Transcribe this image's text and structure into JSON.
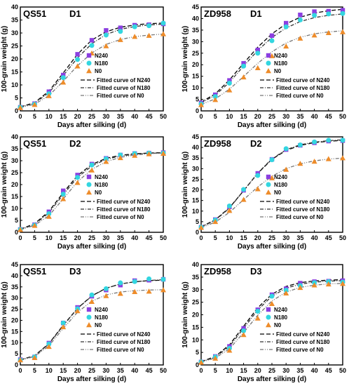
{
  "chart_data": [
    {
      "type": "scatter",
      "variety": "QS51",
      "site": "D1",
      "xlabel": "Days after silking (d)",
      "ylabel": "100-grain weight (g)",
      "xlim": [
        0,
        50
      ],
      "ylim": [
        0,
        40
      ],
      "xticks": [
        0,
        5,
        10,
        15,
        20,
        25,
        30,
        35,
        40,
        45,
        50
      ],
      "yticks": [
        0,
        5,
        10,
        15,
        20,
        25,
        30,
        35,
        40
      ],
      "legend_position": "bottom-right",
      "grid": false,
      "x": [
        0,
        5,
        10,
        15,
        20,
        25,
        30,
        35,
        40,
        45,
        50
      ],
      "series": [
        {
          "name": "N240",
          "marker": "square",
          "color": "#8b3fe0",
          "values": [
            1.4,
            2.8,
            7.4,
            13.8,
            21.8,
            27.2,
            31.0,
            32.0,
            33.0,
            33.2,
            33.5
          ]
        },
        {
          "name": "N180",
          "marker": "circle",
          "color": "#33d6e0",
          "values": [
            1.4,
            2.6,
            6.6,
            12.8,
            19.8,
            25.2,
            29.2,
            30.6,
            32.4,
            32.8,
            33.8
          ]
        },
        {
          "name": "N0",
          "marker": "triangle",
          "color": "#ee8c2a",
          "values": [
            1.2,
            2.4,
            5.8,
            11.0,
            17.2,
            22.2,
            25.0,
            27.4,
            28.6,
            29.0,
            29.6
          ]
        }
      ],
      "fitted_curves": [
        {
          "name": "Fitted curve of N240",
          "color": "#000000",
          "dash": "6,3",
          "values": [
            1.5,
            3.2,
            7.6,
            14.6,
            21.8,
            27.3,
            30.5,
            32.2,
            33.1,
            33.6,
            33.8
          ]
        },
        {
          "name": "Fitted curve of N180",
          "color": "#333333",
          "dash": "5,2,1,2",
          "values": [
            1.4,
            3.0,
            7.0,
            13.6,
            20.4,
            25.9,
            29.4,
            31.4,
            32.5,
            33.1,
            33.4
          ]
        },
        {
          "name": "Fitted curve of N0",
          "color": "#777777",
          "dash": "5,2,1,2,1,2",
          "values": [
            1.3,
            2.6,
            5.9,
            11.4,
            17.4,
            22.3,
            25.6,
            27.5,
            28.6,
            29.2,
            29.6
          ]
        }
      ]
    },
    {
      "type": "scatter",
      "variety": "ZD958",
      "site": "D1",
      "xlabel": "Days after silking (d)",
      "ylabel": "100-grain weight (g)",
      "xlim": [
        0,
        50
      ],
      "ylim": [
        0,
        45
      ],
      "xticks": [
        0,
        5,
        10,
        15,
        20,
        25,
        30,
        35,
        40,
        45,
        50
      ],
      "yticks": [
        0,
        5,
        10,
        15,
        20,
        25,
        30,
        35,
        40,
        45
      ],
      "legend_position": "bottom-right",
      "grid": false,
      "x": [
        0,
        5,
        10,
        15,
        20,
        25,
        30,
        35,
        40,
        45,
        50
      ],
      "series": [
        {
          "name": "N240",
          "marker": "square",
          "color": "#8b3fe0",
          "values": [
            3.5,
            7.0,
            13.2,
            20.6,
            26.4,
            32.6,
            38.0,
            41.6,
            43.0,
            43.2,
            43.6
          ]
        },
        {
          "name": "N180",
          "marker": "circle",
          "color": "#33d6e0",
          "values": [
            3.0,
            6.2,
            12.0,
            19.4,
            25.0,
            30.4,
            36.4,
            39.4,
            41.4,
            42.0,
            42.2
          ]
        },
        {
          "name": "N0",
          "marker": "triangle",
          "color": "#ee8c2a",
          "values": [
            2.6,
            4.8,
            9.0,
            14.6,
            18.6,
            23.8,
            28.0,
            31.4,
            32.8,
            33.8,
            34.2
          ]
        }
      ],
      "fitted_curves": [
        {
          "name": "Fitted curve of N240",
          "color": "#000000",
          "dash": "6,3",
          "values": [
            3.8,
            7.4,
            13.4,
            20.6,
            27.6,
            33.4,
            37.7,
            40.6,
            42.4,
            43.4,
            44.0
          ]
        },
        {
          "name": "Fitted curve of N180",
          "color": "#333333",
          "dash": "5,2,1,2",
          "values": [
            3.4,
            6.8,
            12.4,
            19.4,
            26.2,
            31.8,
            35.9,
            38.7,
            40.4,
            41.4,
            42.0
          ]
        },
        {
          "name": "Fitted curve of N0",
          "color": "#777777",
          "dash": "5,2,1,2,1,2",
          "values": [
            2.8,
            5.2,
            9.4,
            14.9,
            20.6,
            25.6,
            29.4,
            31.9,
            33.4,
            34.2,
            34.7
          ]
        }
      ]
    },
    {
      "type": "scatter",
      "variety": "QS51",
      "site": "D2",
      "xlabel": "Days after silking (d)",
      "ylabel": "100-grain weight (g)",
      "xlim": [
        0,
        50
      ],
      "ylim": [
        0,
        40
      ],
      "xticks": [
        0,
        5,
        10,
        15,
        20,
        25,
        30,
        35,
        40,
        45,
        50
      ],
      "yticks": [
        0,
        5,
        10,
        15,
        20,
        25,
        30,
        35,
        40
      ],
      "legend_position": "bottom-right",
      "grid": false,
      "x": [
        0,
        5,
        10,
        15,
        20,
        25,
        30,
        35,
        40,
        45,
        50
      ],
      "series": [
        {
          "name": "N240",
          "marker": "square",
          "color": "#8b3fe0",
          "values": [
            1.2,
            3.2,
            8.6,
            17.4,
            24.0,
            28.6,
            31.0,
            32.4,
            33.0,
            33.2,
            33.4
          ]
        },
        {
          "name": "N180",
          "marker": "circle",
          "color": "#33d6e0",
          "values": [
            1.2,
            3.0,
            7.8,
            16.0,
            23.0,
            28.2,
            30.8,
            32.4,
            33.0,
            33.2,
            33.2
          ]
        },
        {
          "name": "N0",
          "marker": "triangle",
          "color": "#ee8c2a",
          "values": [
            1.1,
            2.8,
            6.6,
            14.0,
            20.8,
            26.0,
            29.6,
            31.2,
            32.2,
            32.8,
            33.0
          ]
        }
      ],
      "fitted_curves": [
        {
          "name": "Fitted curve of N240",
          "color": "#000000",
          "dash": "6,3",
          "values": [
            1.3,
            3.6,
            8.8,
            16.6,
            23.8,
            28.4,
            31.0,
            32.3,
            32.9,
            33.2,
            33.4
          ]
        },
        {
          "name": "Fitted curve of N180",
          "color": "#333333",
          "dash": "5,2,1,2",
          "values": [
            1.2,
            3.3,
            8.2,
            15.8,
            23.0,
            27.8,
            30.6,
            32.0,
            32.7,
            33.1,
            33.3
          ]
        },
        {
          "name": "Fitted curve of N0",
          "color": "#777777",
          "dash": "5,2,1,2,1,2",
          "values": [
            1.1,
            2.9,
            7.0,
            14.0,
            21.2,
            26.4,
            29.6,
            31.4,
            32.4,
            32.9,
            33.2
          ]
        }
      ]
    },
    {
      "type": "scatter",
      "variety": "ZD958",
      "site": "D2",
      "xlabel": "Days after silking (d)",
      "ylabel": "100-grain weight (g)",
      "xlim": [
        0,
        50
      ],
      "ylim": [
        0,
        45
      ],
      "xticks": [
        0,
        5,
        10,
        15,
        20,
        25,
        30,
        35,
        40,
        45,
        50
      ],
      "yticks": [
        0,
        5,
        10,
        15,
        20,
        25,
        30,
        35,
        40,
        45
      ],
      "legend_position": "bottom-right",
      "grid": false,
      "x": [
        0,
        5,
        10,
        15,
        20,
        25,
        30,
        35,
        40,
        45,
        50
      ],
      "series": [
        {
          "name": "N240",
          "marker": "square",
          "color": "#8b3fe0",
          "values": [
            2.4,
            6.0,
            12.0,
            19.8,
            27.8,
            34.4,
            39.0,
            41.0,
            42.2,
            43.0,
            43.2
          ]
        },
        {
          "name": "N180",
          "marker": "circle",
          "color": "#33d6e0",
          "values": [
            2.4,
            5.8,
            12.4,
            20.2,
            26.8,
            34.2,
            39.4,
            41.2,
            42.6,
            43.4,
            43.4
          ]
        },
        {
          "name": "N0",
          "marker": "triangle",
          "color": "#ee8c2a",
          "values": [
            2.2,
            5.0,
            10.2,
            15.4,
            20.4,
            25.6,
            29.6,
            32.4,
            33.4,
            34.6,
            35.0
          ]
        }
      ],
      "fitted_curves": [
        {
          "name": "Fitted curve of N240",
          "color": "#000000",
          "dash": "6,3",
          "values": [
            2.6,
            5.9,
            11.6,
            19.6,
            27.8,
            34.4,
            38.6,
            41.0,
            42.3,
            42.9,
            43.3
          ]
        },
        {
          "name": "Fitted curve of N180",
          "color": "#333333",
          "dash": "5,2,1,2",
          "values": [
            2.5,
            5.7,
            11.4,
            19.6,
            28.0,
            34.6,
            38.9,
            41.3,
            42.5,
            43.2,
            43.6
          ]
        },
        {
          "name": "Fitted curve of N0",
          "color": "#777777",
          "dash": "5,2,1,2,1,2",
          "values": [
            2.2,
            4.8,
            9.4,
            15.4,
            21.4,
            26.4,
            30.0,
            32.3,
            33.7,
            34.5,
            35.0
          ]
        }
      ]
    },
    {
      "type": "scatter",
      "variety": "QS51",
      "site": "D3",
      "xlabel": "Days after silking (d)",
      "ylabel": "100-grain weight (g)",
      "xlim": [
        0,
        50
      ],
      "ylim": [
        0,
        45
      ],
      "xticks": [
        0,
        5,
        10,
        15,
        20,
        25,
        30,
        35,
        40,
        45,
        50
      ],
      "yticks": [
        0,
        5,
        10,
        15,
        20,
        25,
        30,
        35,
        40,
        45
      ],
      "legend_position": "bottom-right",
      "grid": false,
      "x": [
        0,
        5,
        10,
        15,
        20,
        25,
        30,
        35,
        40,
        45,
        50
      ],
      "series": [
        {
          "name": "N240",
          "marker": "square",
          "color": "#8b3fe0",
          "values": [
            2.4,
            3.6,
            9.8,
            18.8,
            25.8,
            30.8,
            33.6,
            35.8,
            37.8,
            38.0,
            38.4
          ]
        },
        {
          "name": "N180",
          "marker": "circle",
          "color": "#33d6e0",
          "values": [
            2.2,
            3.6,
            9.4,
            18.8,
            25.2,
            31.4,
            34.2,
            36.8,
            37.4,
            38.6,
            38.4
          ]
        },
        {
          "name": "N0",
          "marker": "triangle",
          "color": "#ee8c2a",
          "values": [
            2.2,
            3.2,
            8.2,
            17.0,
            24.2,
            28.4,
            31.0,
            32.0,
            32.8,
            33.0,
            33.6
          ]
        }
      ],
      "fitted_curves": [
        {
          "name": "Fitted curve of N240",
          "color": "#000000",
          "dash": "6,3",
          "values": [
            2.3,
            4.2,
            9.6,
            17.8,
            25.4,
            31.0,
            34.4,
            36.3,
            37.3,
            37.8,
            38.0
          ]
        },
        {
          "name": "Fitted curve of N180",
          "color": "#333333",
          "dash": "5,2,1,2",
          "values": [
            2.2,
            4.1,
            9.4,
            17.6,
            25.3,
            30.9,
            34.4,
            36.3,
            37.3,
            37.9,
            38.2
          ]
        },
        {
          "name": "Fitted curve of N0",
          "color": "#777777",
          "dash": "5,2,1,2,1,2",
          "values": [
            2.1,
            3.8,
            8.6,
            16.4,
            23.6,
            28.6,
            31.4,
            32.7,
            33.3,
            33.6,
            33.7
          ]
        }
      ]
    },
    {
      "type": "scatter",
      "variety": "ZD958",
      "site": "D3",
      "xlabel": "Days after silking (d)",
      "ylabel": "100-grain weight (g)",
      "xlim": [
        0,
        50
      ],
      "ylim": [
        0,
        40
      ],
      "xticks": [
        0,
        5,
        10,
        15,
        20,
        25,
        30,
        35,
        40,
        45,
        50
      ],
      "yticks": [
        0,
        5,
        10,
        15,
        20,
        25,
        30,
        35,
        40
      ],
      "legend_position": "bottom-right",
      "grid": false,
      "x": [
        0,
        5,
        10,
        15,
        20,
        25,
        30,
        35,
        40,
        45,
        50
      ],
      "series": [
        {
          "name": "N240",
          "marker": "square",
          "color": "#8b3fe0",
          "values": [
            1.2,
            3.4,
            7.4,
            14.6,
            22.0,
            28.0,
            30.4,
            32.6,
            33.2,
            33.4,
            33.6
          ]
        },
        {
          "name": "N180",
          "marker": "circle",
          "color": "#33d6e0",
          "values": [
            1.2,
            3.2,
            6.6,
            13.6,
            21.4,
            27.4,
            29.8,
            31.6,
            32.8,
            33.2,
            33.0
          ]
        },
        {
          "name": "N0",
          "marker": "triangle",
          "color": "#ee8c2a",
          "values": [
            1.0,
            2.6,
            5.8,
            12.0,
            18.6,
            24.4,
            28.6,
            30.8,
            31.8,
            32.2,
            32.4
          ]
        }
      ],
      "fitted_curves": [
        {
          "name": "Fitted curve of N240",
          "color": "#000000",
          "dash": "6,3",
          "values": [
            1.3,
            3.4,
            8.0,
            15.4,
            22.8,
            28.2,
            31.3,
            32.8,
            33.5,
            33.8,
            34.0
          ]
        },
        {
          "name": "Fitted curve of N180",
          "color": "#333333",
          "dash": "5,2,1,2",
          "values": [
            1.2,
            3.1,
            7.4,
            14.6,
            21.9,
            27.4,
            30.6,
            32.2,
            33.0,
            33.4,
            33.6
          ]
        },
        {
          "name": "Fitted curve of N0",
          "color": "#777777",
          "dash": "5,2,1,2,1,2",
          "values": [
            1.1,
            2.8,
            6.4,
            12.9,
            19.8,
            25.5,
            29.0,
            30.9,
            31.8,
            32.3,
            32.5
          ]
        }
      ]
    }
  ]
}
